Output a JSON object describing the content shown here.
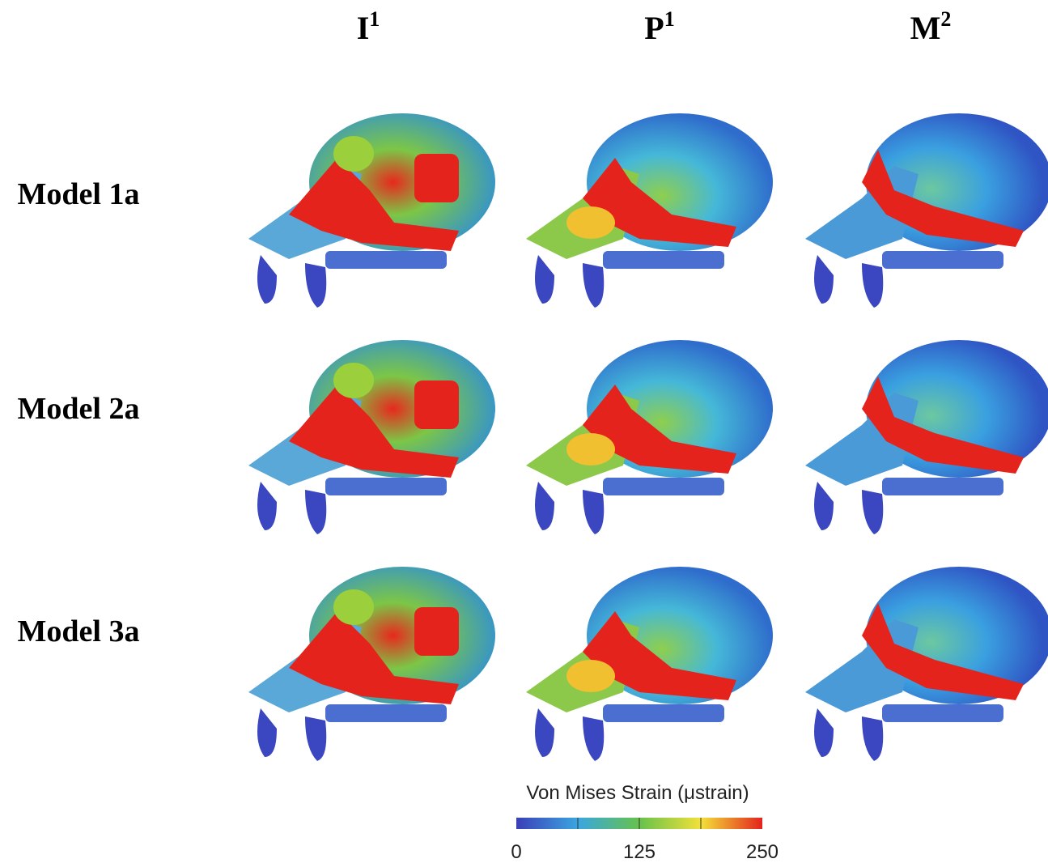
{
  "columns": [
    {
      "letter": "I",
      "sup": "1"
    },
    {
      "letter": "P",
      "sup": "1"
    },
    {
      "letter": "M",
      "sup": "2"
    }
  ],
  "rows": [
    "Model 1a",
    "Model 2a",
    "Model 3a"
  ],
  "colorbar": {
    "title": "Von Mises Strain (μstrain)",
    "range": [
      0,
      250
    ],
    "ticks": [
      0,
      125,
      250
    ],
    "minor_ticks": [
      62.5,
      125,
      187.5
    ]
  }
}
